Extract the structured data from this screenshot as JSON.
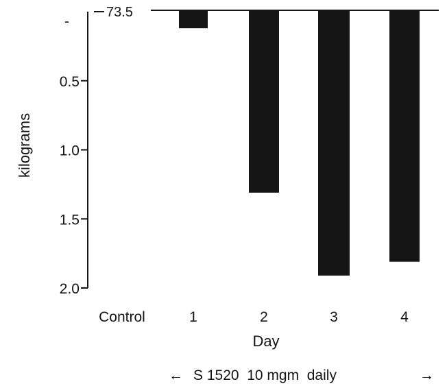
{
  "chart_data": {
    "type": "bar",
    "title": "",
    "xlabel": "Day",
    "ylabel": "kilograms",
    "baseline_label": "73.5",
    "top_tick_label": "-",
    "categories": [
      "Control",
      "1",
      "2",
      "3",
      "4"
    ],
    "values": [
      null,
      0.12,
      1.31,
      1.91,
      1.81
    ],
    "y_axis": {
      "ticks": [
        0.5,
        1.0,
        1.5,
        2.0
      ],
      "tick_labels": [
        "0.5",
        "1.0",
        "1.5",
        "2.0"
      ],
      "ylim": [
        0,
        2.0
      ],
      "inverted": true
    },
    "grid": false,
    "legend": "none",
    "bar_color": "#151515"
  },
  "footnote": {
    "arrow_left": "←",
    "text": "S 1520  10 mgm  daily",
    "arrow_right": "→"
  }
}
